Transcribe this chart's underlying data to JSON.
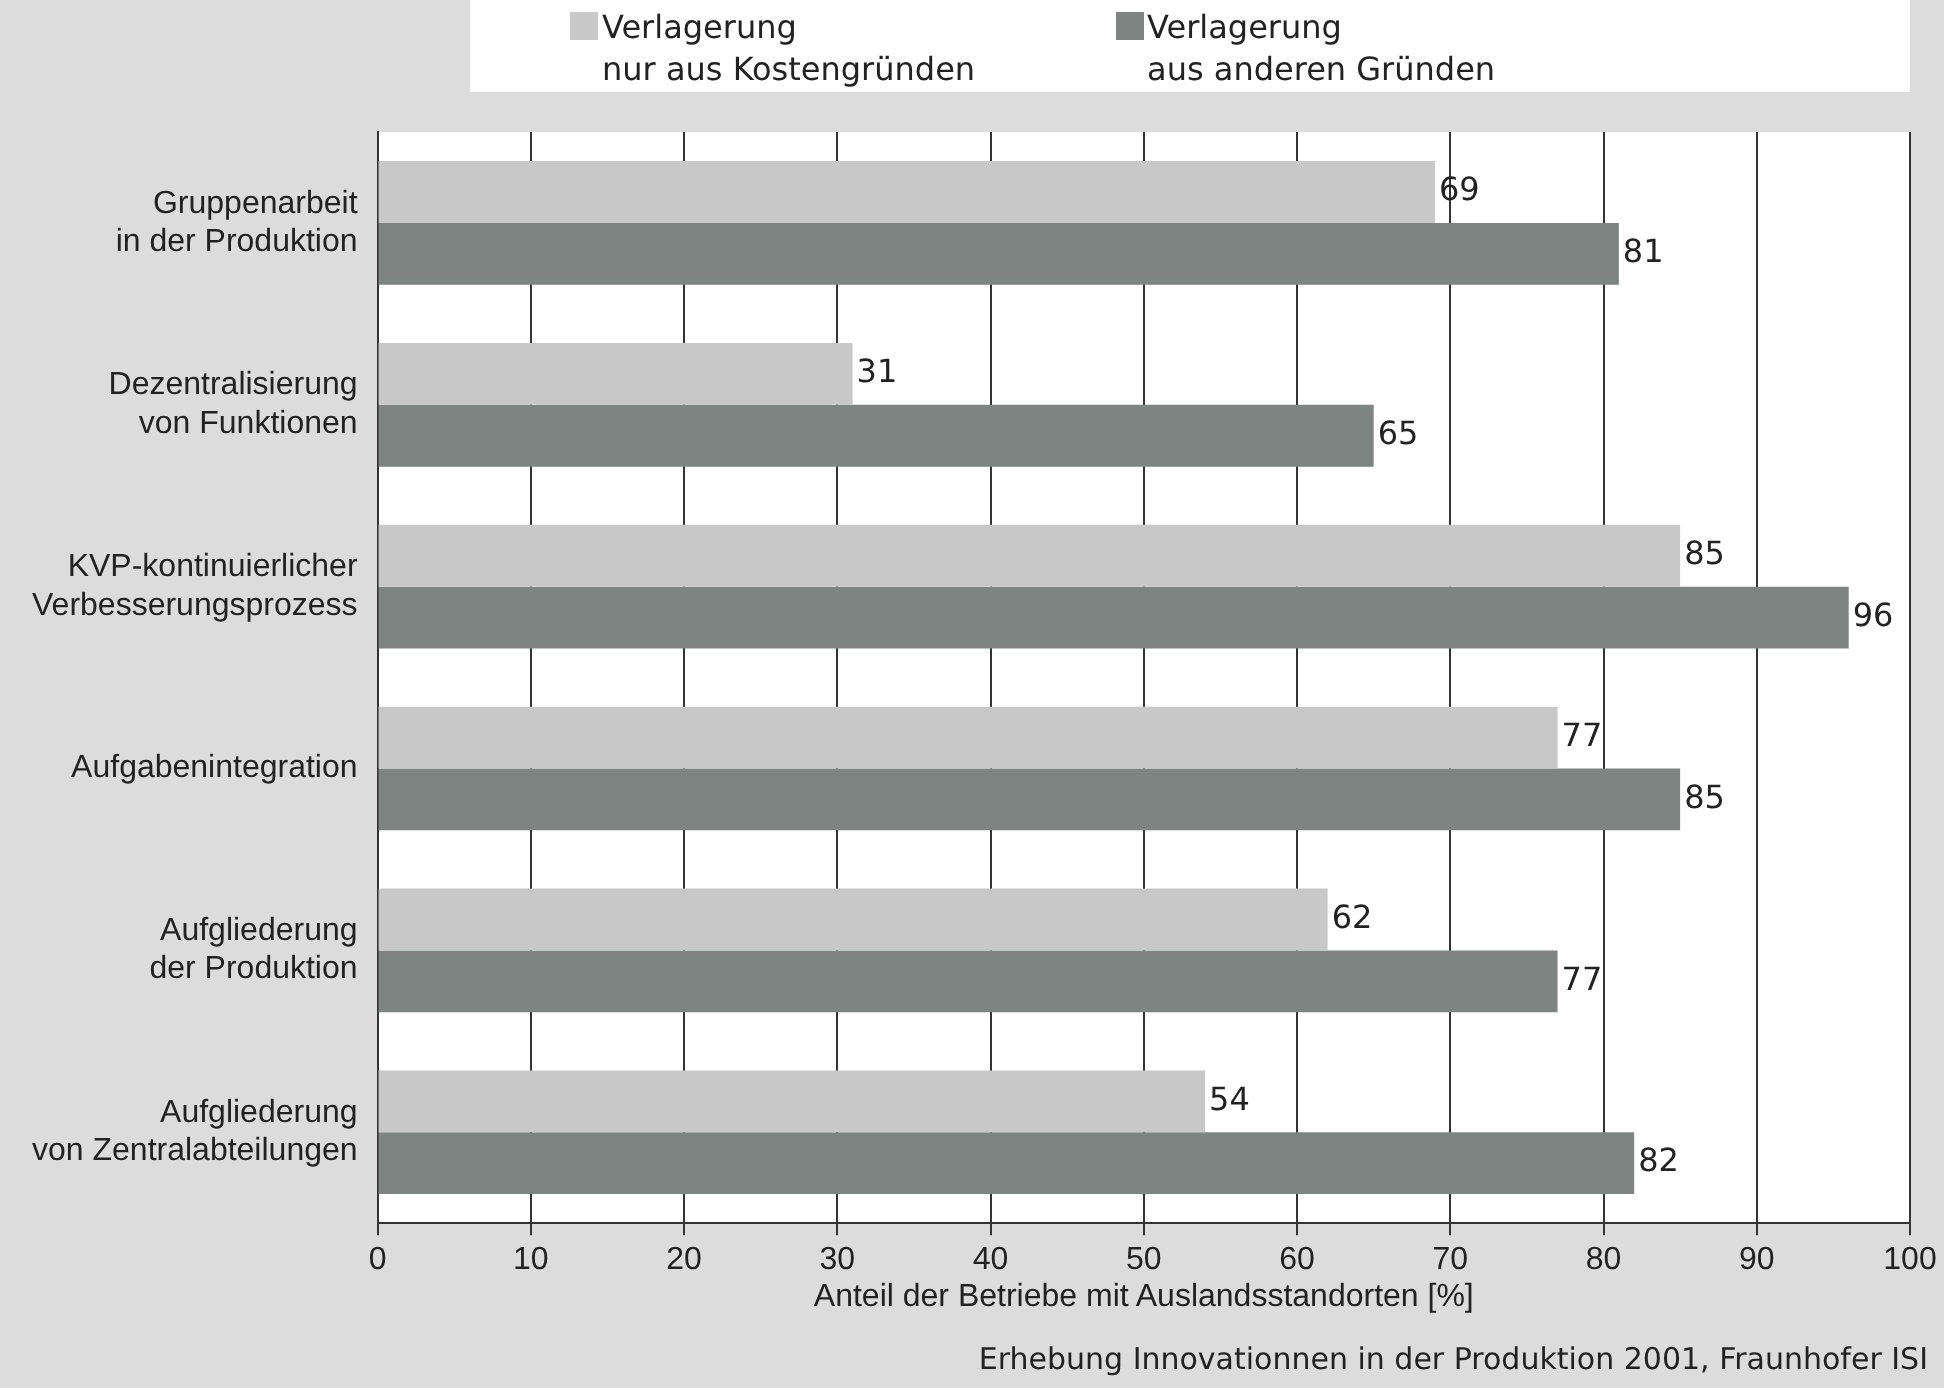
{
  "chart_data": {
    "type": "bar",
    "orientation": "horizontal",
    "categories": [
      "Gruppenarbeit\nin der Produktion",
      "Dezentralisierung\nvon Funktionen",
      "KVP-kontinuierlicher\nVerbesserungsprozess",
      "Aufgabenintegration",
      "Aufgliederung\nder Produktion",
      "Aufgliederung\nvon Zentralabteilungen"
    ],
    "series": [
      {
        "name": "Verlagerung\nnur aus Kostengründen",
        "color": "#c8c8c8",
        "values": [
          69,
          31,
          85,
          77,
          62,
          54
        ]
      },
      {
        "name": "Verlagerung\naus anderen Gründen",
        "color": "#7d8482",
        "values": [
          81,
          65,
          96,
          85,
          77,
          82
        ]
      }
    ],
    "xlabel": "Anteil der Betriebe mit Auslandsstandorten [%]",
    "xlim": [
      0,
      100
    ],
    "xticks": [
      0,
      10,
      20,
      30,
      40,
      50,
      60,
      70,
      80,
      90,
      100
    ],
    "grid": "x",
    "legend": "top",
    "data_labels": true,
    "annotations": [
      "Erhebung Innovationnen in der Produktion 2001, Fraunhofer ISI"
    ]
  }
}
